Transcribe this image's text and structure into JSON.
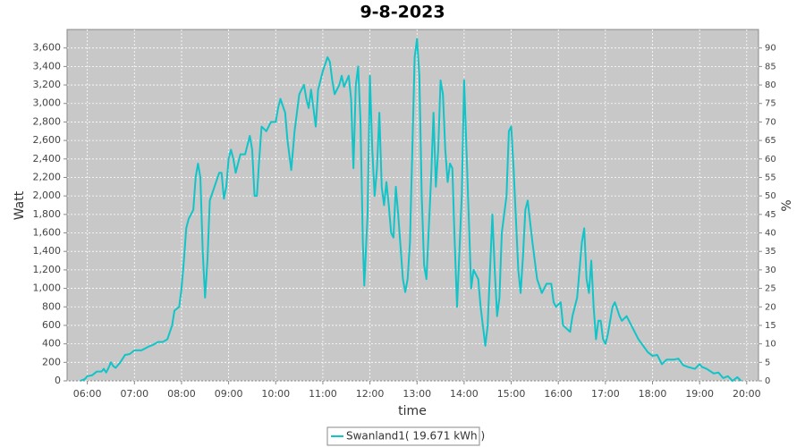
{
  "chart_data": {
    "type": "line",
    "title": "9-8-2023",
    "x_label": "time",
    "y_label": "Watt",
    "y2_label": "%",
    "grid": true,
    "xlim": [
      5.57,
      20.25
    ],
    "xticks": [
      {
        "value": 6,
        "label": "06:00"
      },
      {
        "value": 7,
        "label": "07:00"
      },
      {
        "value": 8,
        "label": "08:00"
      },
      {
        "value": 9,
        "label": "09:00"
      },
      {
        "value": 10,
        "label": "10:00"
      },
      {
        "value": 11,
        "label": "11:00"
      },
      {
        "value": 12,
        "label": "12:00"
      },
      {
        "value": 13,
        "label": "13:00"
      },
      {
        "value": 14,
        "label": "14:00"
      },
      {
        "value": 15,
        "label": "15:00"
      },
      {
        "value": 16,
        "label": "16:00"
      },
      {
        "value": 17,
        "label": "17:00"
      },
      {
        "value": 18,
        "label": "18:00"
      },
      {
        "value": 19,
        "label": "19:00"
      },
      {
        "value": 20,
        "label": "20:00"
      }
    ],
    "ylim": [
      0,
      3800
    ],
    "yticks": [
      0,
      200,
      400,
      600,
      800,
      {
        "value": 1000,
        "label": "1,000"
      },
      {
        "value": 1200,
        "label": "1,200"
      },
      {
        "value": 1400,
        "label": "1,400"
      },
      {
        "value": 1600,
        "label": "1,600"
      },
      {
        "value": 1800,
        "label": "1,800"
      },
      {
        "value": 2000,
        "label": "2,000"
      },
      {
        "value": 2200,
        "label": "2,200"
      },
      {
        "value": 2400,
        "label": "2,400"
      },
      {
        "value": 2600,
        "label": "2,600"
      },
      {
        "value": 2800,
        "label": "2,800"
      },
      {
        "value": 3000,
        "label": "3,000"
      },
      {
        "value": 3200,
        "label": "3,200"
      },
      {
        "value": 3400,
        "label": "3,400"
      },
      {
        "value": 3600,
        "label": "3,600"
      }
    ],
    "y2lim": [
      0,
      95
    ],
    "y2ticks": [
      0,
      5,
      10,
      15,
      20,
      25,
      30,
      35,
      40,
      45,
      50,
      55,
      60,
      65,
      70,
      75,
      80,
      85,
      90
    ],
    "x": [
      5.85,
      5.95,
      6.0,
      6.1,
      6.2,
      6.3,
      6.35,
      6.4,
      6.45,
      6.5,
      6.55,
      6.6,
      6.7,
      6.8,
      6.9,
      7.0,
      7.15,
      7.3,
      7.4,
      7.5,
      7.6,
      7.7,
      7.8,
      7.85,
      7.95,
      8.0,
      8.05,
      8.1,
      8.15,
      8.25,
      8.3,
      8.35,
      8.4,
      8.45,
      8.5,
      8.55,
      8.6,
      8.7,
      8.8,
      8.85,
      8.9,
      8.95,
      9.0,
      9.05,
      9.1,
      9.15,
      9.25,
      9.35,
      9.45,
      9.5,
      9.55,
      9.6,
      9.65,
      9.7,
      9.8,
      9.9,
      10.0,
      10.05,
      10.1,
      10.2,
      10.25,
      10.33,
      10.4,
      10.5,
      10.55,
      10.6,
      10.65,
      10.7,
      10.75,
      10.8,
      10.85,
      10.9,
      11.0,
      11.1,
      11.15,
      11.2,
      11.25,
      11.35,
      11.4,
      11.45,
      11.55,
      11.6,
      11.65,
      11.7,
      11.75,
      11.8,
      11.85,
      11.88,
      11.95,
      12.0,
      12.05,
      12.1,
      12.15,
      12.2,
      12.25,
      12.3,
      12.35,
      12.4,
      12.45,
      12.5,
      12.55,
      12.6,
      12.7,
      12.75,
      12.8,
      12.85,
      12.9,
      12.95,
      13.0,
      13.05,
      13.1,
      13.15,
      13.2,
      13.3,
      13.35,
      13.4,
      13.45,
      13.5,
      13.55,
      13.6,
      13.65,
      13.7,
      13.75,
      13.8,
      13.85,
      13.95,
      14.0,
      14.05,
      14.15,
      14.2,
      14.3,
      14.35,
      14.45,
      14.5,
      14.55,
      14.6,
      14.65,
      14.7,
      14.75,
      14.8,
      14.9,
      14.95,
      15.0,
      15.05,
      15.15,
      15.2,
      15.25,
      15.3,
      15.35,
      15.45,
      15.55,
      15.65,
      15.75,
      15.85,
      15.9,
      15.95,
      16.05,
      16.1,
      16.25,
      16.3,
      16.4,
      16.5,
      16.55,
      16.6,
      16.65,
      16.7,
      16.75,
      16.8,
      16.85,
      16.9,
      16.95,
      17.0,
      17.05,
      17.15,
      17.2,
      17.3,
      17.35,
      17.45,
      17.55,
      17.7,
      17.8,
      17.9,
      18.0,
      18.1,
      18.2,
      18.3,
      18.45,
      18.55,
      18.65,
      18.75,
      18.9,
      19.0,
      19.05,
      19.15,
      19.3,
      19.4,
      19.5,
      19.6,
      19.7,
      19.8,
      19.88
    ],
    "series": [
      {
        "name": "Swanland1( 19.671 kWh )",
        "color": "#11c4c8",
        "values": [
          0,
          20,
          50,
          60,
          100,
          100,
          130,
          90,
          140,
          200,
          160,
          140,
          200,
          280,
          290,
          330,
          330,
          370,
          390,
          420,
          420,
          450,
          600,
          760,
          800,
          1000,
          1300,
          1650,
          1750,
          1850,
          2200,
          2350,
          2200,
          1400,
          900,
          1300,
          1950,
          2100,
          2250,
          2250,
          1970,
          2100,
          2400,
          2500,
          2400,
          2250,
          2450,
          2450,
          2650,
          2500,
          2000,
          2000,
          2400,
          2750,
          2700,
          2800,
          2800,
          2950,
          3050,
          2900,
          2600,
          2280,
          2700,
          3100,
          3150,
          3200,
          3050,
          2950,
          3150,
          2950,
          2750,
          3150,
          3350,
          3500,
          3450,
          3250,
          3100,
          3200,
          3300,
          3180,
          3300,
          3050,
          2300,
          3200,
          3400,
          2800,
          1500,
          1030,
          1800,
          3300,
          2500,
          2000,
          2300,
          2900,
          2100,
          1900,
          2150,
          1900,
          1600,
          1550,
          2100,
          1800,
          1100,
          960,
          1100,
          1500,
          2500,
          3500,
          3700,
          3300,
          2000,
          1250,
          1100,
          2200,
          2900,
          2100,
          2500,
          3250,
          3100,
          2500,
          2150,
          2350,
          2300,
          1500,
          800,
          2000,
          3250,
          2500,
          1000,
          1200,
          1100,
          800,
          380,
          600,
          1200,
          1800,
          1200,
          700,
          900,
          1600,
          2000,
          2700,
          2750,
          2300,
          1200,
          950,
          1350,
          1850,
          1950,
          1500,
          1100,
          950,
          1050,
          1050,
          850,
          800,
          850,
          600,
          530,
          700,
          900,
          1500,
          1650,
          1100,
          950,
          1300,
          800,
          450,
          650,
          650,
          450,
          400,
          500,
          800,
          850,
          700,
          650,
          700,
          600,
          450,
          380,
          310,
          270,
          280,
          180,
          230,
          230,
          240,
          170,
          150,
          130,
          180,
          150,
          130,
          80,
          90,
          30,
          50,
          0,
          40,
          0
        ]
      }
    ]
  }
}
